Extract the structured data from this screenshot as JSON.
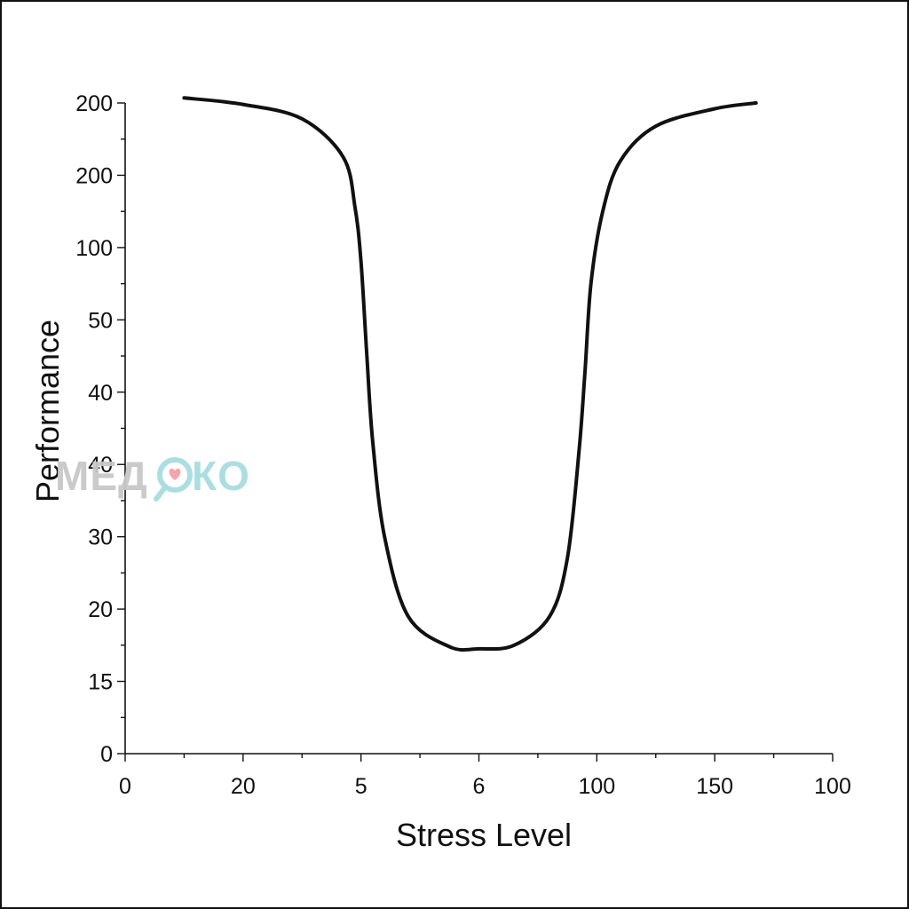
{
  "chart_data": {
    "type": "line",
    "xlabel": "Stress Level",
    "ylabel": "Performance",
    "x_tick_labels": [
      "0",
      "20",
      "5",
      "6",
      "100",
      "150",
      "100"
    ],
    "y_tick_labels": [
      "0",
      "15",
      "20",
      "30",
      "40",
      "40",
      "50",
      "100",
      "200",
      "200"
    ],
    "x_tick_index_range": [
      0,
      6
    ],
    "y_tick_index_range": [
      0,
      9
    ],
    "grid": false,
    "legend": "none",
    "line_color": "#111111",
    "series": [
      {
        "points": [
          [
            0.5,
            9.07
          ],
          [
            1.0,
            8.98
          ],
          [
            1.5,
            8.78
          ],
          [
            1.85,
            8.25
          ],
          [
            1.95,
            7.55
          ],
          [
            2.0,
            6.8
          ],
          [
            2.05,
            5.5
          ],
          [
            2.1,
            4.3
          ],
          [
            2.2,
            3.0
          ],
          [
            2.4,
            1.9
          ],
          [
            2.75,
            1.48
          ],
          [
            3.0,
            1.45
          ],
          [
            3.3,
            1.5
          ],
          [
            3.6,
            1.9
          ],
          [
            3.75,
            2.7
          ],
          [
            3.85,
            4.2
          ],
          [
            3.9,
            5.3
          ],
          [
            3.95,
            6.5
          ],
          [
            4.05,
            7.5
          ],
          [
            4.2,
            8.2
          ],
          [
            4.5,
            8.68
          ],
          [
            5.0,
            8.92
          ],
          [
            5.35,
            9.0
          ]
        ]
      }
    ]
  },
  "watermark": {
    "text_left": "МЕД",
    "text_right": "КО",
    "gray": "#c8c8c8",
    "teal": "#a8dde0",
    "heart": "#f4a0a8"
  }
}
